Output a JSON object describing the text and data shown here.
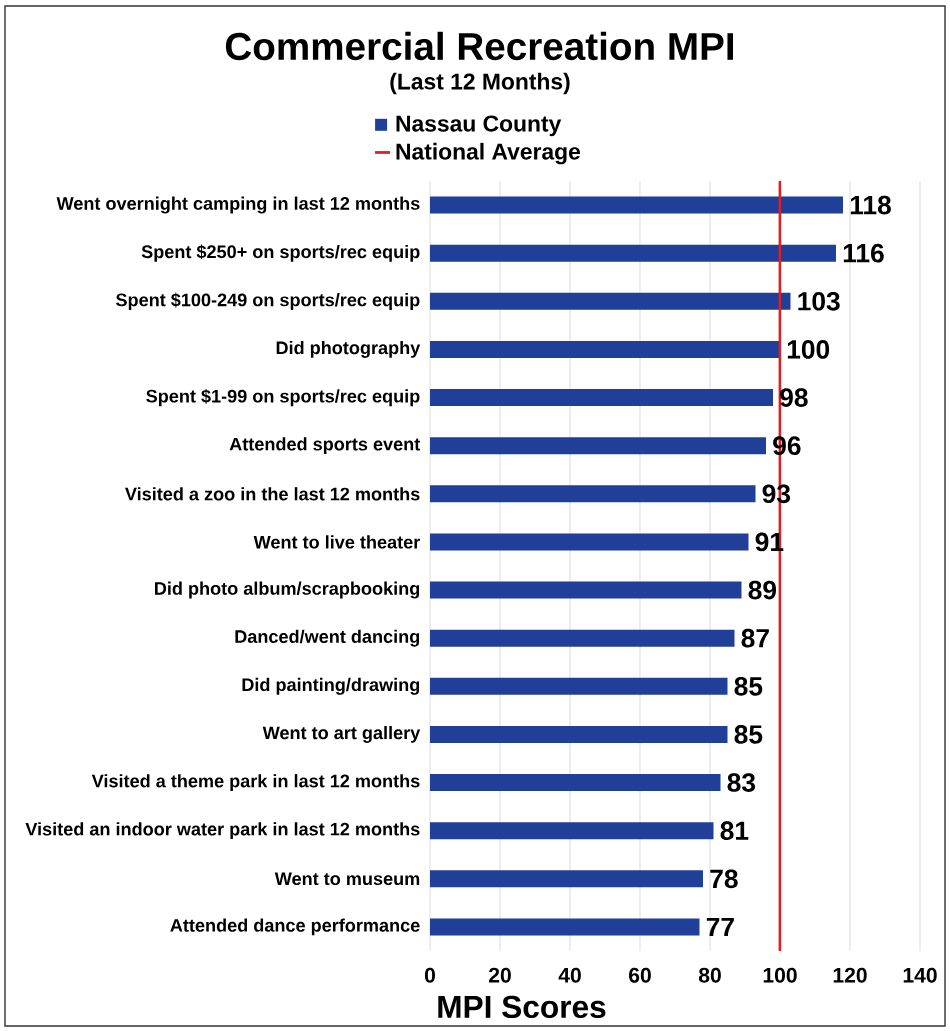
{
  "chart_data": {
    "type": "bar",
    "orientation": "horizontal",
    "title": "Commercial Recreation MPI",
    "subtitle": "(Last 12 Months)",
    "xlabel": "MPI Scores",
    "categories": [
      "Went overnight camping in last 12 months",
      "Spent  $250+ on sports/rec equip",
      "Spent $100-249 on sports/rec equip",
      "Did photography",
      "Spent  $1-99 on sports/rec equip",
      "Attended sports event",
      "Visited a zoo in the last 12 months",
      "Went to live theater",
      "Did photo album/scrapbooking",
      "Danced/went dancing",
      "Did painting/drawing",
      "Went to art gallery",
      "Visited a theme park in last 12 months",
      "Visited an indoor water park in last 12 months",
      "Went to museum",
      "Attended dance performance"
    ],
    "series": [
      {
        "name": "Nassau County",
        "color": "#1f3f99",
        "values": [
          118,
          116,
          103,
          100,
          98,
          96,
          93,
          91,
          89,
          87,
          85,
          85,
          83,
          81,
          78,
          77
        ]
      }
    ],
    "ref_lines": [
      {
        "axis": "x",
        "value": 100,
        "label": "National Average",
        "color": "#e02020"
      }
    ],
    "xlim": [
      0,
      140
    ],
    "xticks": [
      0,
      20,
      40,
      60,
      80,
      100,
      120,
      140
    ],
    "grid": "x",
    "legend": "top",
    "data_labels": true
  }
}
